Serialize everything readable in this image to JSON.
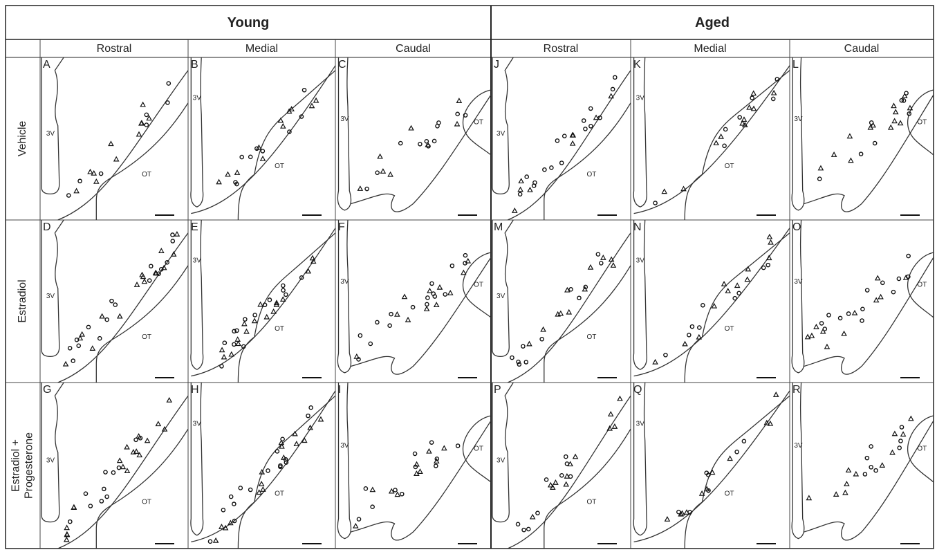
{
  "header": {
    "groups": [
      "Young",
      "Aged"
    ],
    "columns": [
      "Rostral",
      "Medial",
      "Caudal",
      "Rostral",
      "Medial",
      "Caudal"
    ],
    "rows": [
      [
        "Vehicle"
      ],
      [
        "Estradiol"
      ],
      [
        "Estradiol +",
        "Progesterone"
      ]
    ]
  },
  "panels": [
    [
      {
        "letter": "A",
        "ventricle": "3V",
        "tract": "OT"
      },
      {
        "letter": "B",
        "ventricle": "3V",
        "tract": "OT"
      },
      {
        "letter": "C",
        "ventricle": "3V",
        "tract": "OT"
      },
      {
        "letter": "J",
        "ventricle": "3V",
        "tract": "OT"
      },
      {
        "letter": "K",
        "ventricle": "3V",
        "tract": "OT"
      },
      {
        "letter": "L",
        "ventricle": "3V",
        "tract": "OT"
      }
    ],
    [
      {
        "letter": "D",
        "ventricle": "3V",
        "tract": "OT"
      },
      {
        "letter": "E",
        "ventricle": "3V",
        "tract": "OT"
      },
      {
        "letter": "F",
        "ventricle": "3V",
        "tract": "OT"
      },
      {
        "letter": "M",
        "ventricle": "3V",
        "tract": "OT"
      },
      {
        "letter": "N",
        "ventricle": "3V",
        "tract": "OT"
      },
      {
        "letter": "O",
        "ventricle": "3V",
        "tract": "OT"
      }
    ],
    [
      {
        "letter": "G",
        "ventricle": "3V",
        "tract": "OT"
      },
      {
        "letter": "H",
        "ventricle": "3V",
        "tract": "OT"
      },
      {
        "letter": "I",
        "ventricle": "3V",
        "tract": "OT"
      },
      {
        "letter": "P",
        "ventricle": "3V",
        "tract": "OT"
      },
      {
        "letter": "Q",
        "ventricle": "3V",
        "tract": "OT"
      },
      {
        "letter": "R",
        "ventricle": "3V",
        "tract": "OT"
      }
    ]
  ]
}
